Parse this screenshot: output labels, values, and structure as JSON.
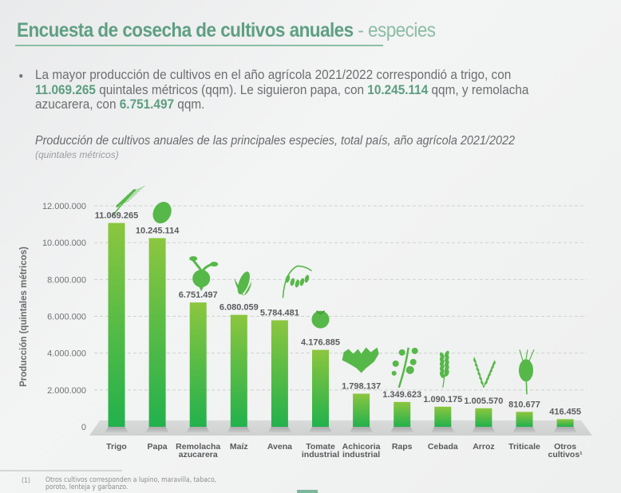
{
  "header": {
    "title": "Encuesta de cosecha de cultivos anuales",
    "separator": " - ",
    "subtitle": "especies"
  },
  "summary": {
    "bullet": "•",
    "part1": "La mayor producción de cultivos en el año agrícola 2021/2022 correspondió a trigo, con ",
    "value1": "11.069.265",
    "part2": " quintales métricos (qqm). Le siguieron  papa, con ",
    "value2": "10.245.114",
    "part3": " qqm, y remolacha azucarera, con ",
    "value3": "6.751.497",
    "part4": " qqm."
  },
  "chart_data": {
    "type": "bar",
    "title": "Producción de cultivos anuales de las principales especies, total país, año agrícola 2021/2022",
    "subtitle": "(quintales métricos)",
    "xlabel": "",
    "ylabel": "Producción (quintales métricos)",
    "ylim": [
      0,
      12000000
    ],
    "yticks": [
      0,
      2000000,
      4000000,
      6000000,
      8000000,
      10000000,
      12000000
    ],
    "ytick_labels": [
      "0",
      "2.000.000",
      "4.000.000",
      "6.000.000",
      "8.000.000",
      "10.000.000",
      "12.000.000"
    ],
    "grid": true,
    "categories": [
      "Trigo",
      "Papa",
      "Remolacha azucarera",
      "Maíz",
      "Avena",
      "Tomate industrial",
      "Achicoria industrial",
      "Raps",
      "Cebada",
      "Arroz",
      "Triticale",
      "Otros cultivos¹"
    ],
    "category_lines": [
      [
        "Trigo"
      ],
      [
        "Papa"
      ],
      [
        "Remolacha",
        "azucarera"
      ],
      [
        "Maíz"
      ],
      [
        "Avena"
      ],
      [
        "Tomate",
        "industrial"
      ],
      [
        "Achicoria",
        "industrial"
      ],
      [
        "Raps"
      ],
      [
        "Cebada"
      ],
      [
        "Arroz"
      ],
      [
        "Triticale"
      ],
      [
        "Otros",
        "cultivos¹"
      ]
    ],
    "values": [
      11069265,
      10245114,
      6751497,
      6080059,
      5784481,
      4176885,
      1798137,
      1349623,
      1090175,
      1005570,
      810677,
      416455
    ],
    "data_labels": [
      "11.069.265",
      "10.245.114",
      "6.751.497",
      "6.080.059",
      "5.784.481",
      "4.176.885",
      "1.798.137",
      "1.349.623",
      "1.090.175",
      "1.005.570",
      "810.677",
      "416.455"
    ],
    "icons": [
      "wheat-icon",
      "potato-icon",
      "beet-icon",
      "corn-icon",
      "oat-icon",
      "tomato-icon",
      "chicory-icon",
      "rapeseed-icon",
      "barley-icon",
      "rice-icon",
      "triticale-icon",
      ""
    ],
    "colors": {
      "bar_top": "#8cc63f",
      "bar_bottom": "#22b14c",
      "icon": "#56b848",
      "label": "#5b5c5e"
    }
  },
  "footnote": {
    "mark": "(1)",
    "text": "Otros cultivos corresponden a lupino, maravilla, tabaco, poroto, lenteja y garbanzo."
  }
}
